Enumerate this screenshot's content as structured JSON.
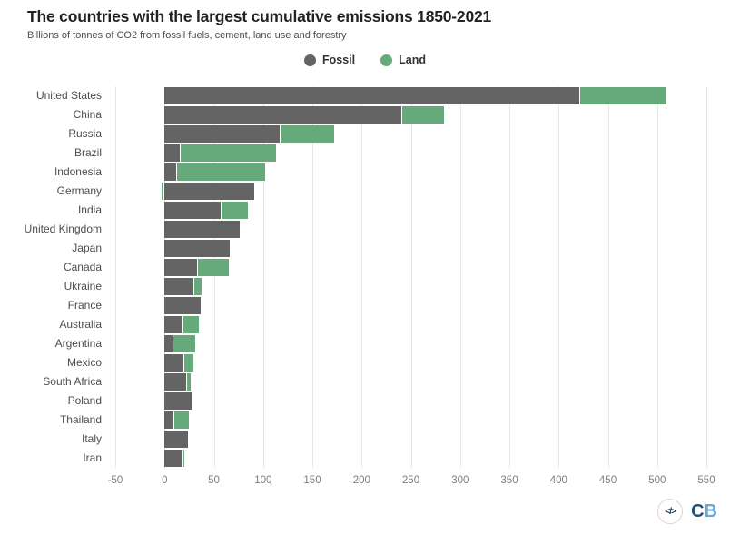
{
  "header": {
    "title": "The countries with the largest cumulative emissions 1850-2021",
    "subtitle": "Billions of tonnes of CO2 from fossil fuels, cement, land use and forestry"
  },
  "legend": [
    {
      "label": "Fossil",
      "color": "#646464"
    },
    {
      "label": "Land",
      "color": "#66aa7c"
    }
  ],
  "chart_data": {
    "type": "bar",
    "orientation": "horizontal",
    "stacked": true,
    "title": "The countries with the largest cumulative emissions 1850-2021",
    "subtitle": "Billions of tonnes of CO2 from fossil fuels, cement, land use and forestry",
    "xlabel": "",
    "ylabel": "",
    "xlim": [
      -50,
      550
    ],
    "x_ticks": [
      -50,
      0,
      50,
      100,
      150,
      200,
      250,
      300,
      350,
      400,
      450,
      500,
      550
    ],
    "grid": true,
    "legend_position": "top-center",
    "categories": [
      "United States",
      "China",
      "Russia",
      "Brazil",
      "Indonesia",
      "Germany",
      "India",
      "United Kingdom",
      "Japan",
      "Canada",
      "Ukraine",
      "France",
      "Australia",
      "Argentina",
      "Mexico",
      "South Africa",
      "Poland",
      "Thailand",
      "Italy",
      "Iran"
    ],
    "series": [
      {
        "name": "Fossil",
        "color": "#646464",
        "values": [
          421,
          240,
          117,
          15,
          12,
          91,
          57,
          76,
          66,
          33,
          29,
          37,
          18,
          8,
          19,
          22,
          27,
          9,
          24,
          18
        ]
      },
      {
        "name": "Land",
        "color": "#66aa7c",
        "values": [
          88,
          44,
          55,
          98,
          90,
          -3,
          28,
          1,
          1,
          32,
          9,
          -2,
          17,
          23,
          10,
          5,
          -1,
          16,
          0.4,
          2
        ]
      }
    ]
  },
  "footer": {
    "code_glyph": "</>",
    "logo_c": "C",
    "logo_b": "B"
  }
}
